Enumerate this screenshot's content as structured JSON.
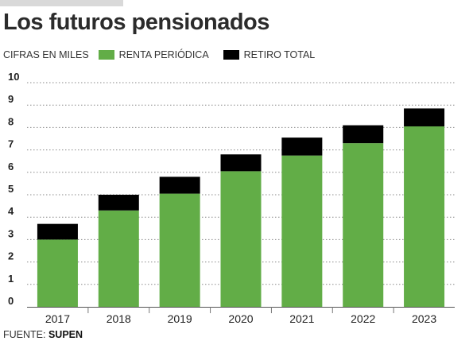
{
  "title": "Los futuros pensionados",
  "legend": {
    "units": "CIFRAS EN MILES",
    "items": [
      {
        "label": "RENTA PERIÓDICA",
        "color": "#62ad47"
      },
      {
        "label": "RETIRO TOTAL",
        "color": "#000000"
      }
    ]
  },
  "source": {
    "prefix": "FUENTE:",
    "name": "SUPEN"
  },
  "chart_data": {
    "type": "bar",
    "stacked": true,
    "title": "Los futuros pensionados",
    "ylabel": "CIFRAS EN MILES",
    "categories": [
      "2017",
      "2018",
      "2019",
      "2020",
      "2021",
      "2022",
      "2023"
    ],
    "series": [
      {
        "name": "RENTA PERIÓDICA",
        "color": "#62ad47",
        "values": [
          3.0,
          4.3,
          5.05,
          6.05,
          6.75,
          7.3,
          8.05
        ]
      },
      {
        "name": "RETIRO TOTAL",
        "color": "#000000",
        "values": [
          0.7,
          0.7,
          0.75,
          0.75,
          0.8,
          0.8,
          0.8
        ]
      }
    ],
    "ylim": [
      0,
      10
    ],
    "yticks": [
      0,
      1,
      2,
      3,
      4,
      5,
      6,
      7,
      8,
      9,
      10
    ],
    "grid": "dotted horizontal",
    "legend": "top-left"
  }
}
